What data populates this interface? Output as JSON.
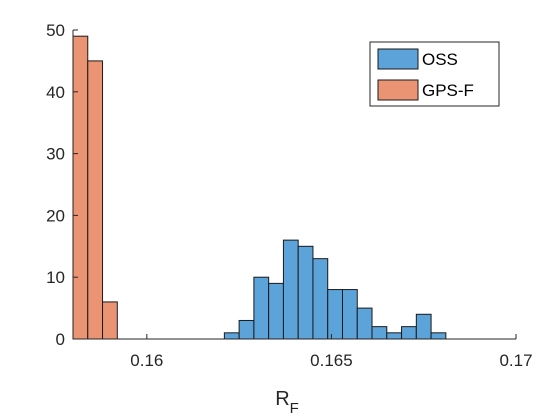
{
  "chart_data": {
    "type": "bar",
    "subtype": "histogram",
    "title": "",
    "xlabel": "R",
    "xlabel_subscript": "F",
    "ylabel": "",
    "xlim": [
      0.158,
      0.17
    ],
    "ylim": [
      0,
      50
    ],
    "x_ticks": [
      0.16,
      0.165,
      0.17
    ],
    "x_tick_labels": [
      "0.16",
      "0.165",
      "0.17"
    ],
    "y_ticks": [
      0,
      10,
      20,
      30,
      40,
      50
    ],
    "y_tick_labels": [
      "0",
      "10",
      "20",
      "30",
      "40",
      "50"
    ],
    "grid": false,
    "legend_position": "top-right",
    "series": [
      {
        "name": "OSS",
        "color": "#5ba3d9",
        "bin_width": 0.0004,
        "bin_start": 0.1621,
        "counts": [
          1,
          3,
          10,
          9,
          16,
          15,
          13,
          8,
          8,
          5,
          2,
          1,
          2,
          4,
          1
        ]
      },
      {
        "name": "GPS-F",
        "color": "#ea9474",
        "bin_width": 0.0004,
        "bin_start": 0.158,
        "counts": [
          49,
          45,
          6
        ]
      }
    ]
  }
}
